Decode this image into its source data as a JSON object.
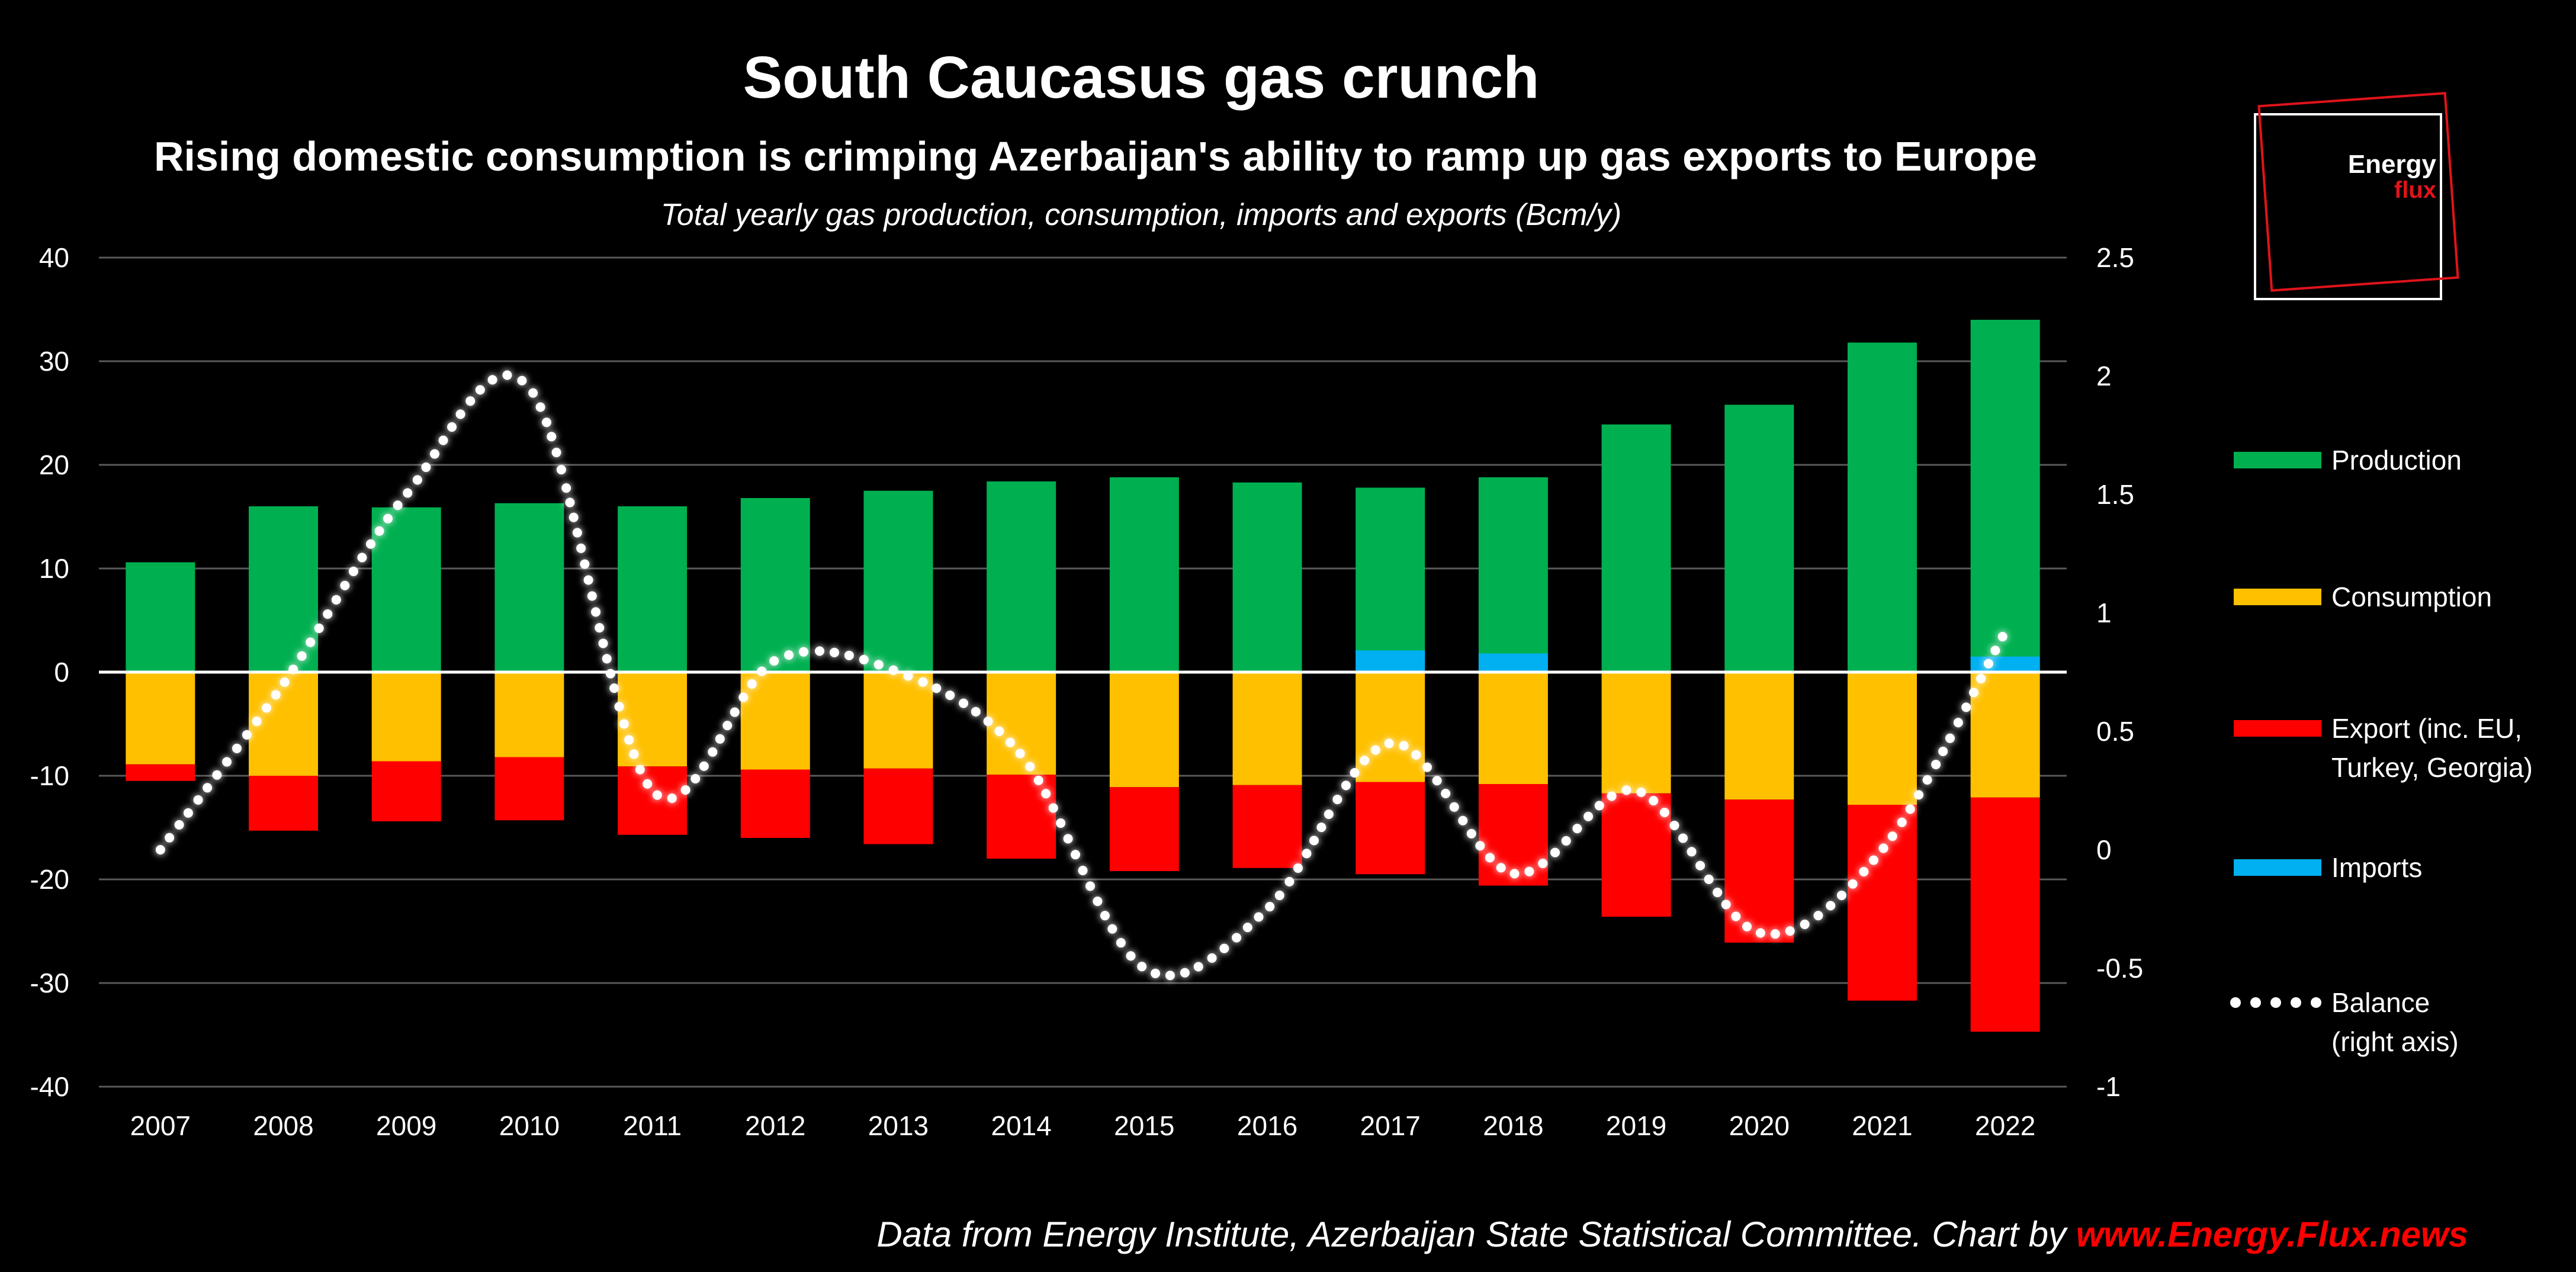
{
  "chart_data": {
    "type": "bar",
    "title": "South Caucasus gas crunch",
    "subtitle": "Rising domestic consumption is crimping Azerbaijan's ability to ramp up gas exports to Europe",
    "caption": "Total yearly gas production, consumption, imports and exports (Bcm/y)",
    "categories": [
      "2007",
      "2008",
      "2009",
      "2010",
      "2011",
      "2012",
      "2013",
      "2014",
      "2015",
      "2016",
      "2017",
      "2018",
      "2019",
      "2020",
      "2021",
      "2022"
    ],
    "left_axis": {
      "ticks": [
        40,
        30,
        20,
        10,
        0,
        -10,
        -20,
        -30,
        -40
      ],
      "ylim": [
        -40,
        40
      ]
    },
    "right_axis": {
      "ticks": [
        "2.5",
        "2",
        "1.5",
        "1",
        "0.5",
        "0",
        "-0.5",
        "-1"
      ],
      "ylim": [
        -1,
        2.5
      ]
    },
    "series": [
      {
        "name": "Production",
        "color": "#00b050",
        "axis": "left",
        "values": [
          10.6,
          16.0,
          15.9,
          16.3,
          16.0,
          16.8,
          17.5,
          18.4,
          18.8,
          18.3,
          17.8,
          18.8,
          23.9,
          25.8,
          31.8,
          34.0
        ]
      },
      {
        "name": "Imports",
        "color": "#00b0f0",
        "axis": "left",
        "values": [
          0,
          0,
          0,
          0,
          0,
          0,
          0,
          0,
          0,
          0,
          2.1,
          1.8,
          0,
          0,
          0,
          1.5
        ]
      },
      {
        "name": "Consumption",
        "color": "#ffc000",
        "axis": "left",
        "values": [
          -8.9,
          -10.0,
          -8.6,
          -8.2,
          -9.1,
          -9.4,
          -9.3,
          -9.9,
          -11.1,
          -10.9,
          -10.6,
          -10.8,
          -11.7,
          -12.3,
          -12.8,
          -12.1
        ]
      },
      {
        "name": "Export",
        "color": "#ff0000",
        "axis": "left",
        "values": [
          -1.6,
          -5.3,
          -5.8,
          -6.1,
          -6.6,
          -6.6,
          -7.3,
          -8.1,
          -8.1,
          -8.0,
          -8.9,
          -9.8,
          -11.9,
          -13.8,
          -18.9,
          -22.6
        ]
      },
      {
        "name": "Balance",
        "axis": "right",
        "style": "dotted",
        "values": [
          0.0,
          0.7,
          1.5,
          1.95,
          0.25,
          0.8,
          0.75,
          0.4,
          -0.5,
          -0.25,
          0.45,
          -0.1,
          0.25,
          -0.35,
          0.0,
          0.92
        ]
      }
    ],
    "legend": [
      {
        "key": "production",
        "line1": "Production",
        "line2": "",
        "color": "#00b050",
        "kind": "bar"
      },
      {
        "key": "consumption",
        "line1": "Consumption",
        "line2": "",
        "color": "#ffc000",
        "kind": "bar"
      },
      {
        "key": "export",
        "line1": "Export (inc. EU,",
        "line2": "Turkey, Georgia)",
        "color": "#ff0000",
        "kind": "bar"
      },
      {
        "key": "imports",
        "line1": "Imports",
        "line2": "",
        "color": "#00b0f0",
        "kind": "bar"
      },
      {
        "key": "balance",
        "line1": "Balance",
        "line2": "(right axis)",
        "color": "#ffffff",
        "kind": "dots"
      }
    ],
    "legend_position": "right",
    "grid": true
  },
  "logo": {
    "line1": "Energy",
    "line2": "flux"
  },
  "source": {
    "text": "Data from Energy Institute, Azerbaijan State Statistical Committee. Chart by ",
    "link": "www.Energy.Flux.news"
  },
  "colors": {
    "background": "#000000",
    "accent_red": "#ff0000",
    "grid": "#595959"
  }
}
